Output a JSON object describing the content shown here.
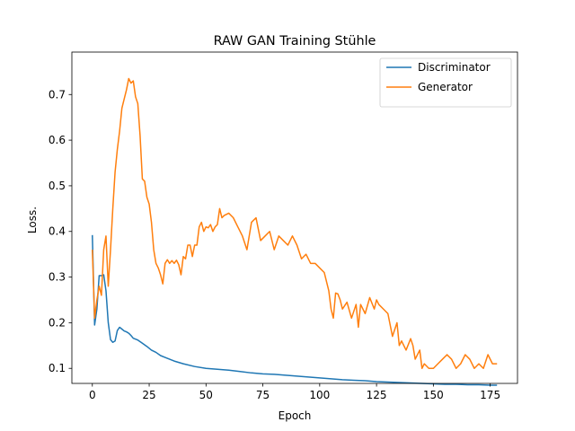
{
  "chart_data": {
    "type": "line",
    "title": "RAW GAN Training Stühle",
    "xlabel": "Epoch",
    "ylabel": "Loss.",
    "xlim": [
      -9,
      187
    ],
    "ylim": [
      0.067,
      0.793
    ],
    "xticks": [
      0,
      25,
      50,
      75,
      100,
      125,
      150,
      175
    ],
    "yticks": [
      0.1,
      0.2,
      0.3,
      0.4,
      0.5,
      0.6,
      0.7
    ],
    "grid": false,
    "legend_position": "top-right",
    "series": [
      {
        "name": "Discriminator",
        "color": "#1f77b4",
        "x": [
          0,
          1,
          2,
          3,
          4,
          5,
          6,
          7,
          8,
          9,
          10,
          11,
          12,
          13,
          14,
          15,
          16,
          17,
          18,
          19,
          20,
          22,
          24,
          26,
          28,
          30,
          32,
          34,
          36,
          38,
          40,
          45,
          50,
          55,
          60,
          65,
          70,
          75,
          80,
          85,
          90,
          95,
          100,
          105,
          110,
          115,
          120,
          125,
          130,
          135,
          140,
          145,
          150,
          155,
          160,
          165,
          170,
          175,
          178
        ],
        "values": [
          0.392,
          0.195,
          0.23,
          0.303,
          0.303,
          0.305,
          0.27,
          0.2,
          0.163,
          0.157,
          0.16,
          0.183,
          0.19,
          0.186,
          0.182,
          0.18,
          0.177,
          0.172,
          0.166,
          0.164,
          0.162,
          0.155,
          0.148,
          0.14,
          0.135,
          0.128,
          0.124,
          0.12,
          0.116,
          0.113,
          0.11,
          0.104,
          0.1,
          0.098,
          0.096,
          0.093,
          0.09,
          0.088,
          0.087,
          0.085,
          0.083,
          0.081,
          0.079,
          0.077,
          0.075,
          0.074,
          0.073,
          0.071,
          0.07,
          0.069,
          0.068,
          0.067,
          0.066,
          0.065,
          0.065,
          0.064,
          0.064,
          0.063,
          0.063
        ]
      },
      {
        "name": "Generator",
        "color": "#ff7f0e",
        "x": [
          0,
          1,
          2,
          3,
          4,
          5,
          6,
          7,
          8,
          9,
          10,
          11,
          12,
          13,
          14,
          15,
          16,
          17,
          18,
          19,
          20,
          21,
          22,
          23,
          24,
          25,
          26,
          27,
          28,
          29,
          30,
          31,
          32,
          33,
          34,
          35,
          36,
          37,
          38,
          39,
          40,
          41,
          42,
          43,
          44,
          45,
          46,
          47,
          48,
          49,
          50,
          51,
          52,
          53,
          54,
          55,
          56,
          57,
          58,
          60,
          62,
          64,
          66,
          68,
          70,
          72,
          74,
          76,
          78,
          80,
          82,
          84,
          86,
          88,
          90,
          92,
          94,
          96,
          98,
          100,
          102,
          104,
          105,
          106,
          107,
          108,
          109,
          110,
          112,
          114,
          116,
          117,
          118,
          120,
          122,
          124,
          125,
          126,
          128,
          130,
          132,
          134,
          135,
          136,
          138,
          140,
          141,
          142,
          144,
          145,
          146,
          148,
          150,
          152,
          154,
          156,
          158,
          160,
          162,
          164,
          166,
          168,
          170,
          172,
          174,
          176,
          178
        ],
        "values": [
          0.36,
          0.21,
          0.25,
          0.28,
          0.26,
          0.36,
          0.39,
          0.28,
          0.36,
          0.45,
          0.53,
          0.58,
          0.62,
          0.67,
          0.69,
          0.71,
          0.735,
          0.725,
          0.73,
          0.695,
          0.68,
          0.61,
          0.515,
          0.51,
          0.475,
          0.46,
          0.42,
          0.36,
          0.33,
          0.32,
          0.305,
          0.285,
          0.33,
          0.338,
          0.33,
          0.336,
          0.33,
          0.337,
          0.327,
          0.305,
          0.345,
          0.34,
          0.37,
          0.37,
          0.345,
          0.37,
          0.37,
          0.41,
          0.42,
          0.4,
          0.41,
          0.408,
          0.415,
          0.4,
          0.41,
          0.415,
          0.45,
          0.43,
          0.435,
          0.44,
          0.43,
          0.41,
          0.39,
          0.36,
          0.42,
          0.43,
          0.38,
          0.39,
          0.4,
          0.36,
          0.39,
          0.38,
          0.37,
          0.39,
          0.37,
          0.34,
          0.35,
          0.33,
          0.33,
          0.32,
          0.31,
          0.27,
          0.23,
          0.21,
          0.265,
          0.263,
          0.25,
          0.23,
          0.245,
          0.21,
          0.24,
          0.19,
          0.24,
          0.22,
          0.255,
          0.23,
          0.25,
          0.24,
          0.23,
          0.22,
          0.17,
          0.2,
          0.15,
          0.16,
          0.14,
          0.165,
          0.15,
          0.12,
          0.14,
          0.1,
          0.11,
          0.1,
          0.1,
          0.11,
          0.12,
          0.13,
          0.12,
          0.1,
          0.11,
          0.13,
          0.12,
          0.1,
          0.11,
          0.1,
          0.13,
          0.11,
          0.11
        ]
      }
    ]
  }
}
